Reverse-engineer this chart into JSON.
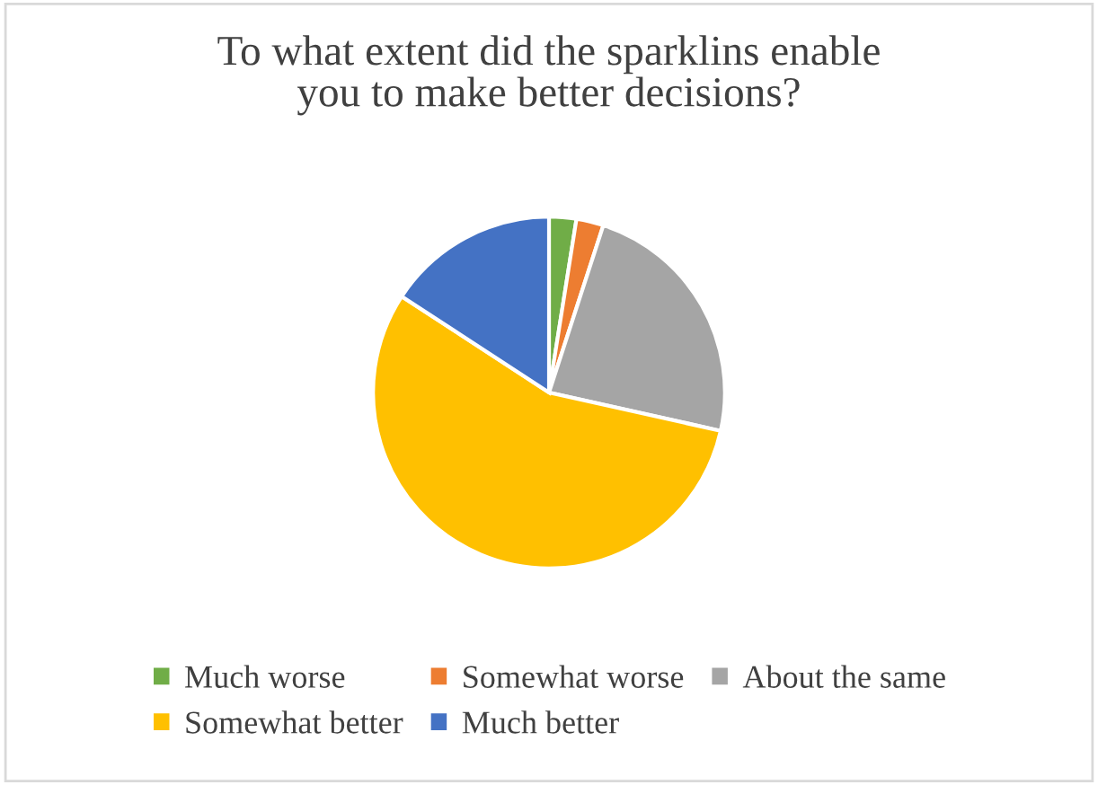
{
  "chart_data": {
    "type": "pie",
    "title": "To what extent did the sparklins enable\nyou to make better decisions?",
    "categories": [
      "Much worse",
      "Somewhat worse",
      "About the same",
      "Somewhat better",
      "Much better"
    ],
    "values": [
      2.5,
      2.5,
      23.5,
      55.7,
      15.8
    ],
    "colors": [
      "#70ad47",
      "#ed7d31",
      "#a5a5a5",
      "#ffc000",
      "#4472c4"
    ],
    "legend": "bottom"
  }
}
